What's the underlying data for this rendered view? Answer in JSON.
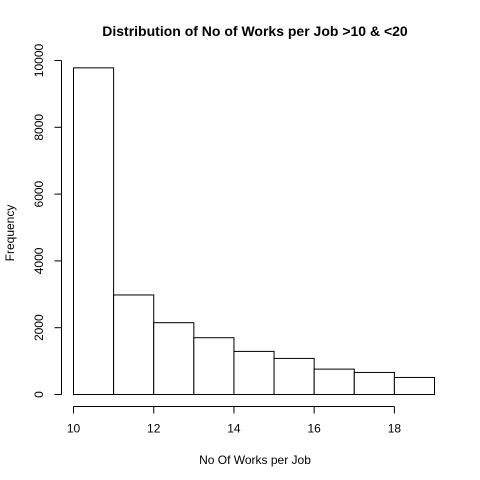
{
  "chart_data": {
    "type": "bar",
    "title": "Distribution of No of Works per Job >10 & <20",
    "xlabel": "No Of Works per Job",
    "ylabel": "Frequency",
    "bins": [
      {
        "start": 10,
        "end": 11,
        "count": 9780
      },
      {
        "start": 11,
        "end": 12,
        "count": 2980
      },
      {
        "start": 12,
        "end": 13,
        "count": 2150
      },
      {
        "start": 13,
        "end": 14,
        "count": 1700
      },
      {
        "start": 14,
        "end": 15,
        "count": 1290
      },
      {
        "start": 15,
        "end": 16,
        "count": 1080
      },
      {
        "start": 16,
        "end": 17,
        "count": 760
      },
      {
        "start": 17,
        "end": 18,
        "count": 660
      },
      {
        "start": 18,
        "end": 19,
        "count": 510
      }
    ],
    "xticks": [
      10,
      12,
      14,
      16,
      18
    ],
    "yticks": [
      0,
      2000,
      4000,
      6000,
      8000,
      10000
    ],
    "xlim": [
      10,
      19
    ],
    "ylim": [
      0,
      10000
    ],
    "grid": false,
    "legend": "none"
  }
}
